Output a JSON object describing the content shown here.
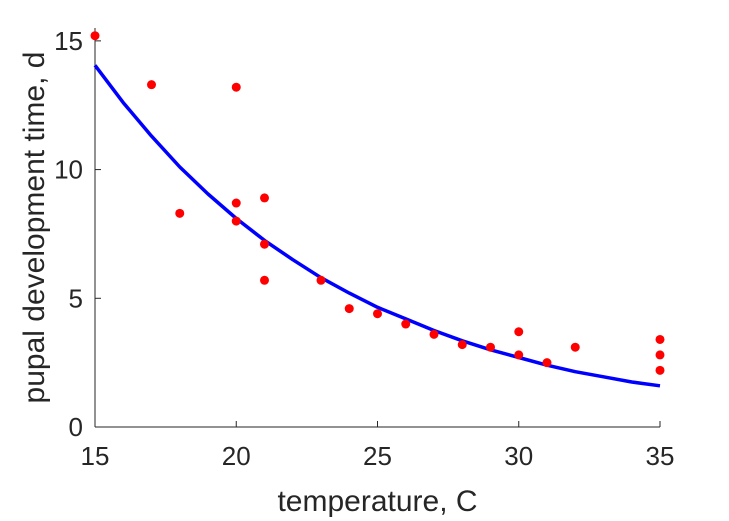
{
  "chart_data": {
    "type": "scatter",
    "title": "",
    "xlabel": "temperature, C",
    "ylabel": "pupal development time, d",
    "xlim": [
      15,
      35
    ],
    "ylim": [
      0,
      15.5
    ],
    "xticks": [
      15,
      20,
      25,
      30,
      35
    ],
    "yticks": [
      0,
      5,
      10,
      15
    ],
    "grid": false,
    "colors": {
      "points": "#ff0000",
      "curve": "#0000ff",
      "axis": "#262626"
    },
    "series": [
      {
        "type": "scatter",
        "points": [
          [
            15,
            15.2
          ],
          [
            17,
            13.3
          ],
          [
            18,
            8.3
          ],
          [
            20,
            13.2
          ],
          [
            20,
            8.7
          ],
          [
            20,
            8.0
          ],
          [
            21,
            8.9
          ],
          [
            21,
            7.1
          ],
          [
            21,
            5.7
          ],
          [
            23,
            5.7
          ],
          [
            24,
            4.6
          ],
          [
            25,
            4.4
          ],
          [
            26,
            4.0
          ],
          [
            27,
            3.6
          ],
          [
            28,
            3.2
          ],
          [
            29,
            3.1
          ],
          [
            30,
            3.7
          ],
          [
            30,
            2.8
          ],
          [
            31,
            2.5
          ],
          [
            32,
            3.1
          ],
          [
            35,
            3.4
          ],
          [
            35,
            2.8
          ],
          [
            35,
            2.2
          ]
        ]
      },
      {
        "type": "line",
        "x": [
          15,
          16,
          17,
          18,
          19,
          20,
          21,
          22,
          23,
          24,
          25,
          26,
          27,
          28,
          29,
          30,
          31,
          32,
          33,
          34,
          35
        ],
        "y": [
          14.05,
          12.6,
          11.3,
          10.1,
          9.05,
          8.1,
          7.25,
          6.5,
          5.8,
          5.2,
          4.65,
          4.2,
          3.75,
          3.35,
          3.0,
          2.7,
          2.4,
          2.15,
          1.95,
          1.75,
          1.6
        ]
      }
    ]
  }
}
